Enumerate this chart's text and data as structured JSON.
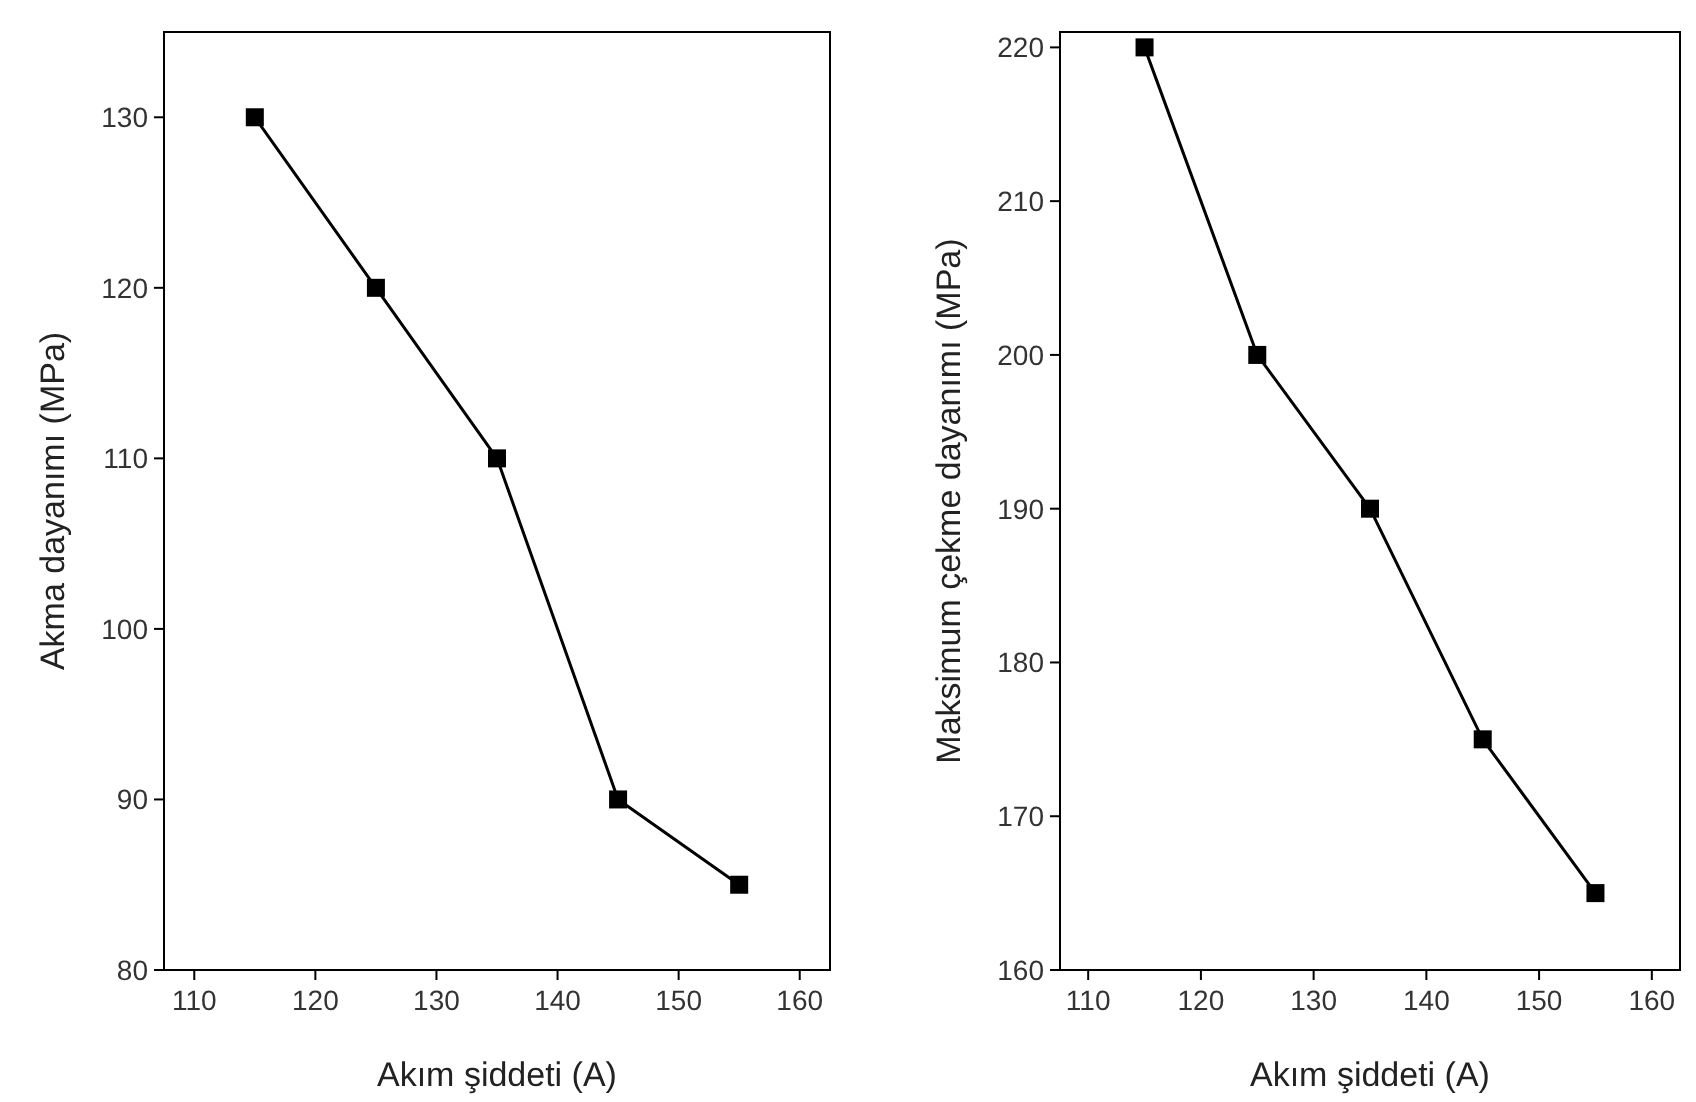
{
  "chart_data": [
    {
      "type": "line",
      "xlabel": "Akım şiddeti (A)",
      "ylabel": "Akma dayanımı (MPa)",
      "x": [
        115,
        125,
        135,
        145,
        155
      ],
      "series": [
        {
          "color": "#000000",
          "values": [
            130,
            120,
            110,
            90,
            85
          ]
        }
      ],
      "xlim": [
        107.5,
        162.5
      ],
      "xticks": [
        110,
        120,
        130,
        140,
        150,
        160
      ],
      "ylim": [
        80,
        135
      ],
      "yticks": [
        80,
        90,
        100,
        110,
        120,
        130
      ],
      "marker": "square",
      "line_style": "solid"
    },
    {
      "type": "line",
      "xlabel": "Akım şiddeti (A)",
      "ylabel": "Maksimum çekme dayanımı (MPa)",
      "x": [
        115,
        125,
        135,
        145,
        155
      ],
      "series": [
        {
          "color": "#000000",
          "values": [
            220,
            200,
            190,
            175,
            165
          ]
        }
      ],
      "xlim": [
        107.5,
        162.5
      ],
      "xticks": [
        110,
        120,
        130,
        140,
        150,
        160
      ],
      "ylim": [
        160,
        221
      ],
      "yticks": [
        160,
        170,
        180,
        190,
        200,
        210,
        220
      ],
      "marker": "square",
      "line_style": "solid"
    }
  ]
}
